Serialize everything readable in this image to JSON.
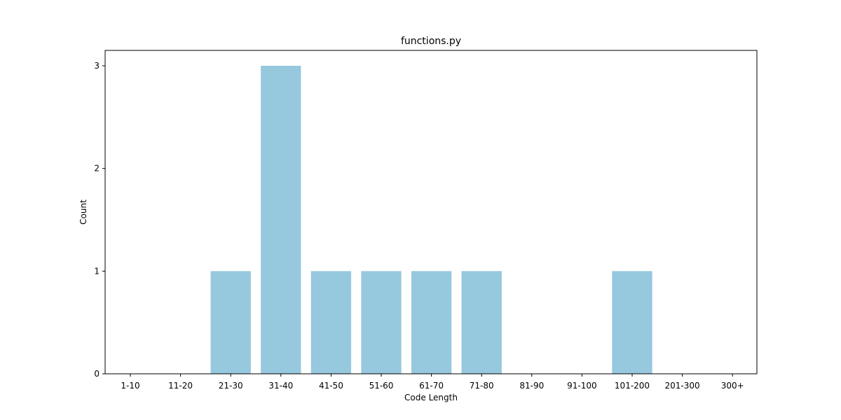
{
  "chart_data": {
    "type": "bar",
    "title": "functions.py",
    "xlabel": "Code Length",
    "ylabel": "Count",
    "categories": [
      "1-10",
      "11-20",
      "21-30",
      "31-40",
      "41-50",
      "51-60",
      "61-70",
      "71-80",
      "81-90",
      "91-100",
      "101-200",
      "201-300",
      "300+"
    ],
    "values": [
      0,
      0,
      1,
      3,
      1,
      1,
      1,
      1,
      0,
      0,
      1,
      0,
      0
    ],
    "ylim": [
      0,
      3.15
    ],
    "yticks": [
      0,
      1,
      2,
      3
    ],
    "grid": false,
    "bar_color": "#96c8de"
  }
}
